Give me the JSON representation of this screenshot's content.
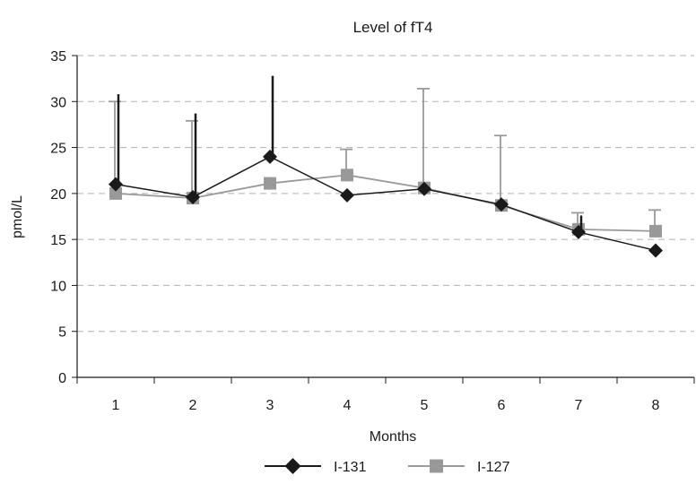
{
  "chart_data": {
    "type": "line",
    "title": "Level of fT4",
    "xlabel": "Months",
    "ylabel": "pmol/L",
    "categories": [
      "1",
      "2",
      "3",
      "4",
      "5",
      "6",
      "7",
      "8"
    ],
    "ylim": [
      0,
      35
    ],
    "yticks": [
      "0",
      "5",
      "10",
      "15",
      "20",
      "25",
      "30",
      "35"
    ],
    "grid": "horizontal dashed",
    "legend_position": "bottom",
    "series": [
      {
        "name": "I-131",
        "marker": "diamond",
        "color": "#1a1a1a",
        "values": [
          21.0,
          19.6,
          24.0,
          19.8,
          20.5,
          18.8,
          15.8,
          13.8
        ],
        "error_upper": [
          30.8,
          28.7,
          32.8,
          null,
          null,
          null,
          17.6,
          null
        ]
      },
      {
        "name": "I-127",
        "marker": "square",
        "color": "#999999",
        "values": [
          20.0,
          19.5,
          21.1,
          22.0,
          20.6,
          18.7,
          16.1,
          15.9
        ],
        "error_upper": [
          30.0,
          27.9,
          null,
          24.8,
          31.4,
          26.3,
          17.9,
          18.2
        ]
      }
    ]
  }
}
